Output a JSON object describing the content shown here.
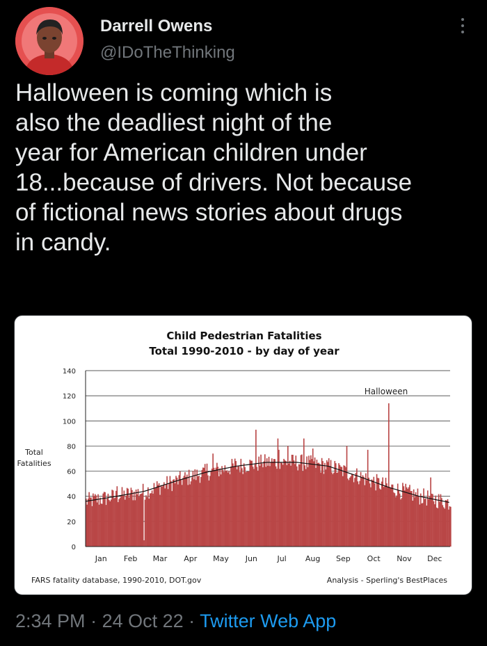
{
  "tweet": {
    "author_name": "Darrell Owens",
    "author_handle": "@IDoTheThinking",
    "text_lines": [
      "Halloween is coming which is",
      "also the deadliest night of the",
      "year for American children under",
      "18...because of drivers. Not because",
      "of fictional news stories about drugs",
      "in candy."
    ],
    "time": "2:34 PM",
    "separator": " · ",
    "date": "24 Oct 22",
    "app": "Twitter Web App"
  },
  "colors": {
    "background": "#000000",
    "text": "#e7e9ea",
    "muted": "#71767b",
    "link": "#1d9bf0",
    "bar": "#b94646"
  },
  "icons": {
    "more": "three-dot-vertical-icon",
    "avatar": "profile-avatar"
  },
  "chart_data": {
    "type": "bar",
    "title": "Child Pedestrian Fatalities",
    "subtitle": "Total 1990-2010 - by day of year",
    "ylabel": "Total\nFatalities",
    "ylim": [
      0,
      140
    ],
    "yticks": [
      0,
      20,
      40,
      60,
      80,
      100,
      120,
      140
    ],
    "month_labels": [
      "Jan",
      "Feb",
      "Mar",
      "Apr",
      "May",
      "Jun",
      "Jul",
      "Aug",
      "Sep",
      "Oct",
      "Nov",
      "Dec"
    ],
    "annotation": "Halloween",
    "annotation_day": 304,
    "trend_values_at_month_start": [
      36,
      40,
      44,
      52,
      59,
      64,
      67,
      67,
      64,
      56,
      47,
      40,
      35
    ],
    "outliers": {
      "32": 48,
      "59": 5,
      "122": 66,
      "128": 74,
      "150": 70,
      "171": 93,
      "177": 66,
      "193": 86,
      "194": 77,
      "203": 80,
      "219": 86,
      "228": 78,
      "262": 80,
      "283": 77,
      "304": 114,
      "346": 55
    },
    "source_note": "FARS fatality database, 1990-2010, DOT.gov",
    "analysis_note": "Analysis - Sperling's BestPlaces"
  }
}
